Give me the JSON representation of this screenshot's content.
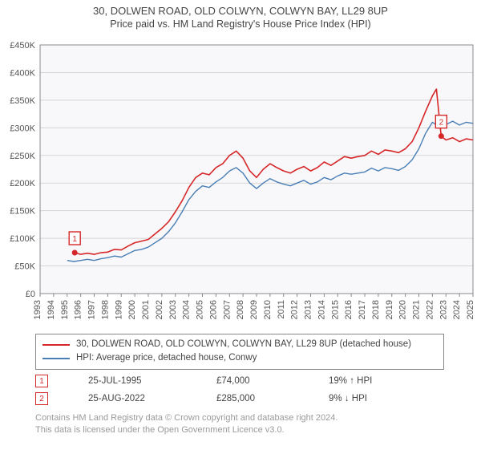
{
  "titles": {
    "line1": "30, DOLWEN ROAD, OLD COLWYN, COLWYN BAY, LL29 8UP",
    "line2": "Price paid vs. HM Land Registry's House Price Index (HPI)"
  },
  "chart": {
    "type": "line",
    "background_color": "#ffffff",
    "plot_background": "#f8f8fb",
    "grid_color": "#d5d5d5",
    "axis_color": "#888888",
    "tick_fontsize": 11,
    "tick_color": "#555555",
    "y": {
      "min": 0,
      "max": 450,
      "step": 50,
      "unit_prefix": "£",
      "unit_suffix": "K",
      "labels": [
        "£0",
        "£50K",
        "£100K",
        "£150K",
        "£200K",
        "£250K",
        "£300K",
        "£350K",
        "£400K",
        "£450K"
      ]
    },
    "x": {
      "min": 1993,
      "max": 2025,
      "step": 1,
      "labels": [
        "1993",
        "1994",
        "1995",
        "1996",
        "1997",
        "1998",
        "1999",
        "2000",
        "2001",
        "2002",
        "2003",
        "2004",
        "2005",
        "2006",
        "2007",
        "2008",
        "2009",
        "2010",
        "2011",
        "2012",
        "2013",
        "2014",
        "2015",
        "2016",
        "2017",
        "2018",
        "2019",
        "2020",
        "2021",
        "2022",
        "2023",
        "2024",
        "2025"
      ]
    },
    "series": [
      {
        "name": "property",
        "label": "30, DOLWEN ROAD, OLD COLWYN, COLWYN BAY, LL29 8UP (detached house)",
        "color": "#d62728",
        "line_width": 1.6,
        "points": [
          [
            1995.56,
            74
          ],
          [
            1996,
            71
          ],
          [
            1996.5,
            73
          ],
          [
            1997,
            71
          ],
          [
            1997.5,
            74
          ],
          [
            1998,
            75
          ],
          [
            1998.5,
            80
          ],
          [
            1999,
            79
          ],
          [
            1999.5,
            86
          ],
          [
            2000,
            92
          ],
          [
            2000.5,
            95
          ],
          [
            2001,
            98
          ],
          [
            2001.5,
            108
          ],
          [
            2002,
            118
          ],
          [
            2002.5,
            130
          ],
          [
            2003,
            148
          ],
          [
            2003.5,
            168
          ],
          [
            2004,
            192
          ],
          [
            2004.5,
            210
          ],
          [
            2005,
            218
          ],
          [
            2005.5,
            215
          ],
          [
            2006,
            228
          ],
          [
            2006.5,
            235
          ],
          [
            2007,
            250
          ],
          [
            2007.5,
            258
          ],
          [
            2008,
            245
          ],
          [
            2008.5,
            222
          ],
          [
            2009,
            210
          ],
          [
            2009.5,
            225
          ],
          [
            2010,
            235
          ],
          [
            2010.5,
            228
          ],
          [
            2011,
            222
          ],
          [
            2011.5,
            218
          ],
          [
            2012,
            225
          ],
          [
            2012.5,
            230
          ],
          [
            2013,
            222
          ],
          [
            2013.5,
            228
          ],
          [
            2014,
            238
          ],
          [
            2014.5,
            232
          ],
          [
            2015,
            240
          ],
          [
            2015.5,
            248
          ],
          [
            2016,
            245
          ],
          [
            2016.5,
            248
          ],
          [
            2017,
            250
          ],
          [
            2017.5,
            258
          ],
          [
            2018,
            252
          ],
          [
            2018.5,
            260
          ],
          [
            2019,
            258
          ],
          [
            2019.5,
            255
          ],
          [
            2020,
            262
          ],
          [
            2020.5,
            275
          ],
          [
            2021,
            300
          ],
          [
            2021.5,
            330
          ],
          [
            2022,
            358
          ],
          [
            2022.3,
            370
          ],
          [
            2022.65,
            285
          ],
          [
            2023,
            278
          ],
          [
            2023.5,
            282
          ],
          [
            2024,
            275
          ],
          [
            2024.5,
            280
          ],
          [
            2025,
            278
          ]
        ]
      },
      {
        "name": "hpi",
        "label": "HPI: Average price, detached house, Conwy",
        "color": "#4a7fb5",
        "line_width": 1.4,
        "points": [
          [
            1995,
            60
          ],
          [
            1995.5,
            58
          ],
          [
            1996,
            60
          ],
          [
            1996.5,
            62
          ],
          [
            1997,
            60
          ],
          [
            1997.5,
            63
          ],
          [
            1998,
            65
          ],
          [
            1998.5,
            68
          ],
          [
            1999,
            66
          ],
          [
            1999.5,
            72
          ],
          [
            2000,
            78
          ],
          [
            2000.5,
            80
          ],
          [
            2001,
            84
          ],
          [
            2001.5,
            92
          ],
          [
            2002,
            100
          ],
          [
            2002.5,
            112
          ],
          [
            2003,
            128
          ],
          [
            2003.5,
            148
          ],
          [
            2004,
            170
          ],
          [
            2004.5,
            185
          ],
          [
            2005,
            195
          ],
          [
            2005.5,
            192
          ],
          [
            2006,
            202
          ],
          [
            2006.5,
            210
          ],
          [
            2007,
            222
          ],
          [
            2007.5,
            228
          ],
          [
            2008,
            218
          ],
          [
            2008.5,
            200
          ],
          [
            2009,
            190
          ],
          [
            2009.5,
            200
          ],
          [
            2010,
            208
          ],
          [
            2010.5,
            202
          ],
          [
            2011,
            198
          ],
          [
            2011.5,
            195
          ],
          [
            2012,
            200
          ],
          [
            2012.5,
            205
          ],
          [
            2013,
            198
          ],
          [
            2013.5,
            202
          ],
          [
            2014,
            210
          ],
          [
            2014.5,
            206
          ],
          [
            2015,
            213
          ],
          [
            2015.5,
            218
          ],
          [
            2016,
            216
          ],
          [
            2016.5,
            218
          ],
          [
            2017,
            220
          ],
          [
            2017.5,
            227
          ],
          [
            2018,
            222
          ],
          [
            2018.5,
            228
          ],
          [
            2019,
            226
          ],
          [
            2019.5,
            223
          ],
          [
            2020,
            230
          ],
          [
            2020.5,
            242
          ],
          [
            2021,
            262
          ],
          [
            2021.5,
            290
          ],
          [
            2022,
            310
          ],
          [
            2022.5,
            302
          ],
          [
            2023,
            306
          ],
          [
            2023.5,
            312
          ],
          [
            2024,
            305
          ],
          [
            2024.5,
            310
          ],
          [
            2025,
            308
          ]
        ]
      }
    ],
    "markers": [
      {
        "id": "1",
        "x": 1995.56,
        "y": 74,
        "box_color": "#d62728",
        "text_color": "#d62728",
        "date": "25-JUL-1995",
        "price": "£74,000",
        "delta": "19% ↑ HPI"
      },
      {
        "id": "2",
        "x": 2022.65,
        "y": 285,
        "box_color": "#d62728",
        "text_color": "#d62728",
        "date": "25-AUG-2022",
        "price": "£285,000",
        "delta": "9% ↓ HPI"
      }
    ]
  },
  "legend": {
    "border_color": "#888888",
    "rows": [
      {
        "color": "#d62728",
        "text": "30, DOLWEN ROAD, OLD COLWYN, COLWYN BAY, LL29 8UP (detached house)"
      },
      {
        "color": "#4a7fb5",
        "text": "HPI: Average price, detached house, Conwy"
      }
    ]
  },
  "licence": {
    "line1": "Contains HM Land Registry data © Crown copyright and database right 2024.",
    "line2": "This data is licensed under the Open Government Licence v3.0."
  }
}
